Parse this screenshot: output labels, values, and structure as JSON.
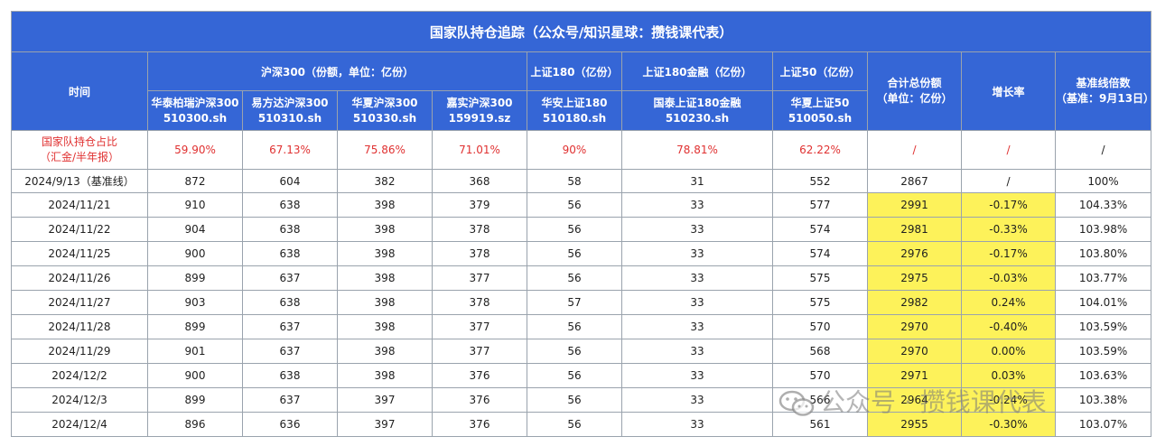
{
  "title": "国家队持仓追踪（公众号/知识星球：攒钱课代表）",
  "header": {
    "time_label": "时间",
    "group_hs300": "沪深300（份额，单位：亿份）",
    "group_sz180": "上证180（亿份）",
    "group_sz180fin": "上证180金融（亿份）",
    "group_sz50": "上证50（亿份）",
    "total_label": "合计总份额\n（单位：亿份）",
    "growth_label": "增长率",
    "baseline_label": "基准线倍数\n（基准：9月13日）",
    "funds": [
      {
        "name": "华泰柏瑞沪深300",
        "code": "510300.sh"
      },
      {
        "name": "易方达沪深300",
        "code": "510310.sh"
      },
      {
        "name": "华夏沪深300",
        "code": "510330.sh"
      },
      {
        "name": "嘉实沪深300",
        "code": "159919.sz"
      },
      {
        "name": "华安上证180",
        "code": "510180.sh"
      },
      {
        "name": "国泰上证180金融",
        "code": "510230.sh"
      },
      {
        "name": "华夏上证50",
        "code": "510050.sh"
      }
    ]
  },
  "ratio_row": {
    "label_line1": "国家队持仓占比",
    "label_line2": "（汇金/半年报）",
    "values": [
      "59.90%",
      "67.13%",
      "75.86%",
      "71.01%",
      "90%",
      "78.81%",
      "62.22%"
    ],
    "total": "/",
    "growth": "/",
    "baseline": "/"
  },
  "rows": [
    {
      "date": "2024/9/13（基准线）",
      "v": [
        "872",
        "604",
        "382",
        "368",
        "58",
        "31",
        "552"
      ],
      "total": "2867",
      "growth": "/",
      "base": "100%",
      "hl": false
    },
    {
      "date": "2024/11/21",
      "v": [
        "910",
        "638",
        "398",
        "379",
        "56",
        "33",
        "577"
      ],
      "total": "2991",
      "growth": "-0.17%",
      "base": "104.33%",
      "hl": true
    },
    {
      "date": "2024/11/22",
      "v": [
        "904",
        "638",
        "398",
        "378",
        "56",
        "33",
        "574"
      ],
      "total": "2981",
      "growth": "-0.33%",
      "base": "103.98%",
      "hl": true
    },
    {
      "date": "2024/11/25",
      "v": [
        "900",
        "638",
        "398",
        "378",
        "56",
        "33",
        "574"
      ],
      "total": "2976",
      "growth": "-0.17%",
      "base": "103.80%",
      "hl": true
    },
    {
      "date": "2024/11/26",
      "v": [
        "899",
        "637",
        "398",
        "377",
        "56",
        "33",
        "575"
      ],
      "total": "2975",
      "growth": "-0.03%",
      "base": "103.77%",
      "hl": true
    },
    {
      "date": "2024/11/27",
      "v": [
        "903",
        "638",
        "398",
        "378",
        "57",
        "33",
        "575"
      ],
      "total": "2982",
      "growth": "0.24%",
      "base": "104.01%",
      "hl": true
    },
    {
      "date": "2024/11/28",
      "v": [
        "899",
        "637",
        "398",
        "377",
        "56",
        "33",
        "570"
      ],
      "total": "2970",
      "growth": "-0.40%",
      "base": "103.59%",
      "hl": true
    },
    {
      "date": "2024/11/29",
      "v": [
        "901",
        "637",
        "398",
        "377",
        "56",
        "33",
        "568"
      ],
      "total": "2970",
      "growth": "0.00%",
      "base": "103.59%",
      "hl": true
    },
    {
      "date": "2024/12/2",
      "v": [
        "900",
        "638",
        "398",
        "376",
        "56",
        "33",
        "570"
      ],
      "total": "2971",
      "growth": "0.03%",
      "base": "103.63%",
      "hl": true
    },
    {
      "date": "2024/12/3",
      "v": [
        "899",
        "637",
        "397",
        "376",
        "56",
        "33",
        "566"
      ],
      "total": "2964",
      "growth": "-0.24%",
      "base": "103.38%",
      "hl": true
    },
    {
      "date": "2024/12/4",
      "v": [
        "896",
        "636",
        "397",
        "376",
        "56",
        "33",
        "561"
      ],
      "total": "2955",
      "growth": "-0.30%",
      "base": "103.07%",
      "hl": true
    }
  ],
  "watermark": "公众号 · 攒钱课代表",
  "colors": {
    "header_blue": "#3566d6",
    "highlight_yellow": "#fdf25a",
    "ratio_red": "#e03131"
  },
  "icons": {
    "watermark_logo": "wechat-icon"
  }
}
